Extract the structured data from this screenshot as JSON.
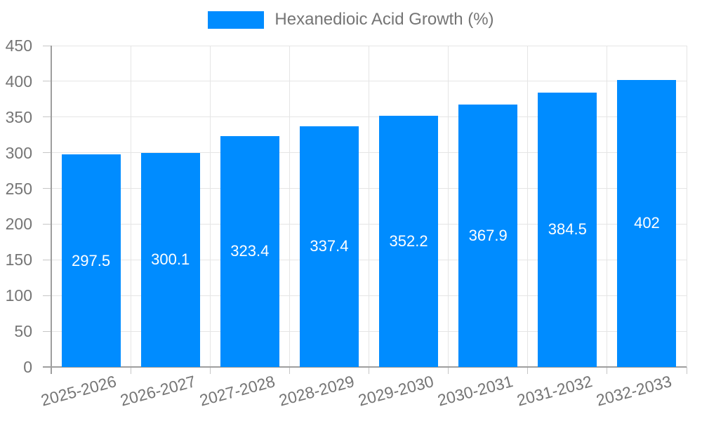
{
  "chart_data": {
    "type": "bar",
    "title": "Hexanedioic Acid Growth (%)",
    "categories": [
      "2025-2026",
      "2026-2027",
      "2027-2028",
      "2028-2029",
      "2029-2030",
      "2030-2031",
      "2031-2032",
      "2032-2033"
    ],
    "values": [
      297.5,
      300.1,
      323.4,
      337.4,
      352.2,
      367.9,
      384.5,
      402
    ],
    "value_labels": [
      "297.5",
      "300.1",
      "323.4",
      "337.4",
      "352.2",
      "367.9",
      "384.5",
      "402"
    ],
    "xlabel": "",
    "ylabel": "",
    "ylim": [
      0,
      450
    ],
    "ytick_step": 50,
    "ytick_labels": [
      "0",
      "50",
      "100",
      "150",
      "200",
      "250",
      "300",
      "350",
      "400",
      "450"
    ],
    "grid": true,
    "legend_position": "top",
    "bar_color": "#008CFF",
    "value_label_color": "#ffffff",
    "axis_text_color": "#757575"
  }
}
